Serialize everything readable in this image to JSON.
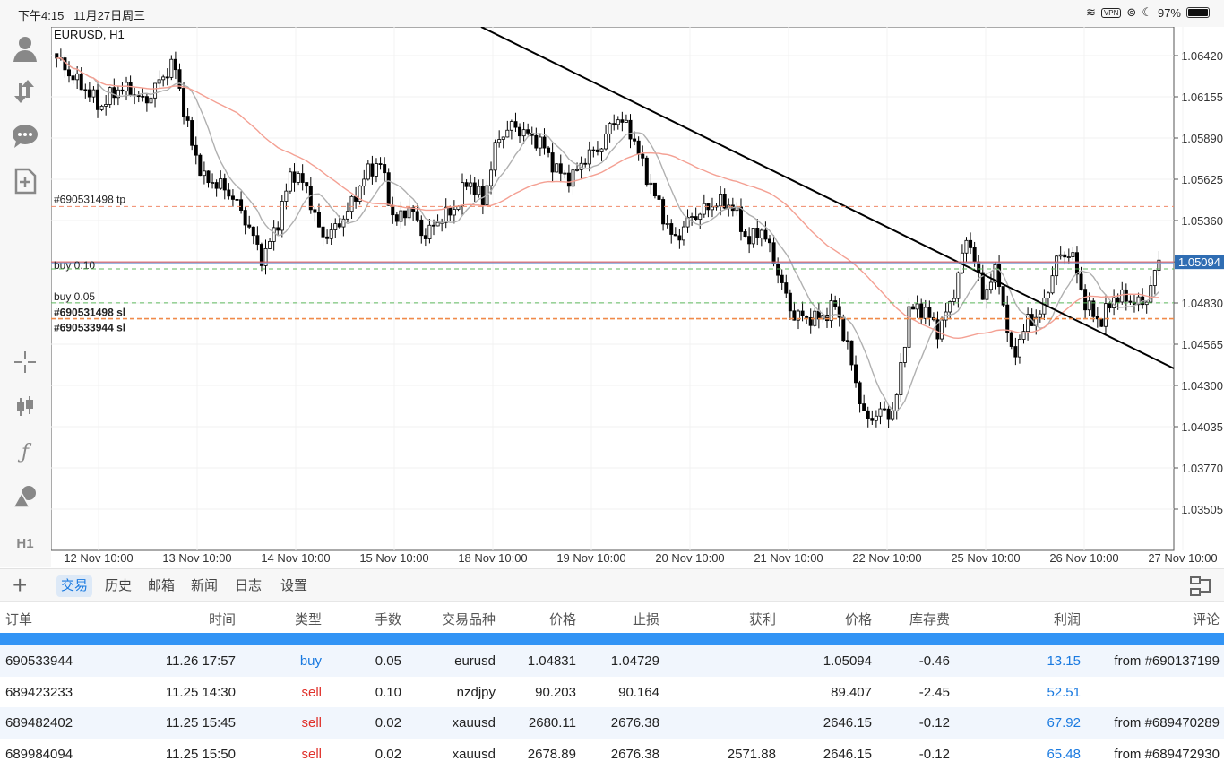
{
  "status": {
    "time": "下午4:15",
    "date": "11月27日周三",
    "vpn": "VPN",
    "battery": "97%"
  },
  "chart": {
    "symbol_label": "EURUSD, H1",
    "current_price": "1.05094",
    "price_ticks": [
      "1.06420",
      "1.06155",
      "1.05890",
      "1.05625",
      "1.05360",
      "1.05094",
      "1.04830",
      "1.04565",
      "1.04300",
      "1.04035",
      "1.03770",
      "1.03505"
    ],
    "time_ticks": [
      "12 Nov 10:00",
      "13 Nov 10:00",
      "14 Nov 10:00",
      "15 Nov 10:00",
      "18 Nov 10:00",
      "19 Nov 10:00",
      "20 Nov 10:00",
      "21 Nov 10:00",
      "22 Nov 10:00",
      "25 Nov 10:00",
      "26 Nov 10:00",
      "27 Nov 10:00"
    ],
    "order_labels": {
      "tp": "#690531498 tp",
      "buy1": "buy 0.10",
      "buy2": "buy 0.05",
      "sl": "#690531498 sl",
      "sl2": "#690533944 sl"
    },
    "levels": {
      "tp": 1.0545,
      "buy1": 1.05094,
      "buy1_open": 1.05049,
      "buy2": 1.04831,
      "sl": 1.04729
    },
    "colors": {
      "up": "#ffffff",
      "down": "#000000",
      "sma_fast": "#b0b0b0",
      "sma_slow": "#f4a093",
      "tp": "#f08a6a",
      "buy_line": "#e05656",
      "entry": "#5cb85c",
      "sl": "#f08a4a",
      "price_tag": "#2f6db3"
    }
  },
  "chart_data": {
    "type": "candlestick",
    "title": "EURUSD, H1",
    "ylim": [
      1.033,
      1.066
    ],
    "closes": [
      1.06403,
      1.06288,
      1.06201,
      1.06086,
      1.06201,
      1.06201,
      1.06115,
      1.06259,
      1.06374,
      1.05913,
      1.05625,
      1.05596,
      1.0551,
      1.05337,
      1.05107,
      1.05337,
      1.05683,
      1.05568,
      1.05251,
      1.05308,
      1.05452,
      1.05654,
      1.0574,
      1.05337,
      1.05452,
      1.05251,
      1.05366,
      1.05424,
      1.05625,
      1.05481,
      1.05884,
      1.05971,
      1.05913,
      1.05856,
      1.05683,
      1.05625,
      1.05769,
      1.05827,
      1.06028,
      1.05942,
      1.05683,
      1.05452,
      1.05222,
      1.05366,
      1.05424,
      1.05481,
      1.05452,
      1.05222,
      1.05308,
      1.05049,
      1.04761,
      1.04732,
      1.04732,
      1.04819,
      1.04473,
      1.0407,
      1.04128,
      1.04128,
      1.0479,
      1.0479,
      1.04646,
      1.04876,
      1.0528,
      1.04876,
      1.05049,
      1.04473,
      1.04704,
      1.04761,
      1.05107,
      1.05164,
      1.04819,
      1.04704,
      1.04876,
      1.04848,
      1.04819,
      1.05094
    ]
  },
  "toolbar": {
    "timeframe": "H1"
  },
  "tabs": [
    "交易",
    "历史",
    "邮箱",
    "新闻",
    "日志",
    "设置"
  ],
  "table": {
    "headers": [
      "订单",
      "时间",
      "类型",
      "手数",
      "交易品种",
      "价格",
      "止损",
      "获利",
      "价格",
      "库存费",
      "利润",
      "评论"
    ],
    "rows": [
      [
        "690533944",
        "11.26 17:57",
        "buy",
        "0.05",
        "eurusd",
        "1.04831",
        "1.04729",
        "",
        "1.05094",
        "-0.46",
        "13.15",
        "from #690137199"
      ],
      [
        "689423233",
        "11.25 14:30",
        "sell",
        "0.10",
        "nzdjpy",
        "90.203",
        "90.164",
        "",
        "89.407",
        "-2.45",
        "52.51",
        ""
      ],
      [
        "689482402",
        "11.25 15:45",
        "sell",
        "0.02",
        "xauusd",
        "2680.11",
        "2676.38",
        "",
        "2646.15",
        "-0.12",
        "67.92",
        "from #689470289"
      ],
      [
        "689984094",
        "11.25 15:50",
        "sell",
        "0.02",
        "xauusd",
        "2678.89",
        "2676.38",
        "2571.88",
        "2646.15",
        "-0.12",
        "65.48",
        "from #689472930"
      ]
    ]
  }
}
